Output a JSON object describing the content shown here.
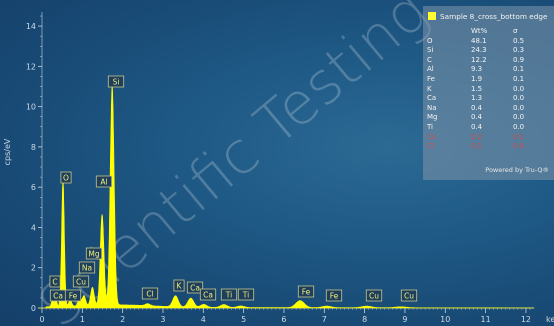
{
  "chart_data": {
    "type": "spectrum",
    "ylabel": "cps/eV",
    "xlabel": "keV",
    "xlim": [
      -0.1,
      12.2
    ],
    "ylim": [
      0,
      14.7
    ],
    "x_ticks": [
      0,
      1,
      2,
      3,
      4,
      5,
      6,
      7,
      8,
      9,
      10,
      11,
      12
    ],
    "y_ticks": [
      0,
      2,
      4,
      6,
      8,
      10,
      12,
      14
    ],
    "series_color": "#ffff00",
    "peaks": [
      {
        "label": "C",
        "energy": 0.28,
        "height": 0.6
      },
      {
        "label": "Ca",
        "energy": 0.34,
        "height": 0.3
      },
      {
        "label": "O",
        "energy": 0.52,
        "height": 6.3
      },
      {
        "label": "Fe",
        "energy": 0.7,
        "height": 0.3
      },
      {
        "label": "Cu",
        "energy": 0.93,
        "height": 0.35
      },
      {
        "label": "Na",
        "energy": 1.04,
        "height": 0.5
      },
      {
        "label": "Mg",
        "energy": 1.25,
        "height": 0.9
      },
      {
        "label": "Al",
        "energy": 1.49,
        "height": 4.5
      },
      {
        "label": "Si",
        "energy": 1.74,
        "height": 10.9
      },
      {
        "label": "Cl",
        "energy": 2.62,
        "height": 0.1
      },
      {
        "label": "K",
        "energy": 3.31,
        "height": 0.55
      },
      {
        "label": "Ca",
        "energy": 3.69,
        "height": 0.45
      },
      {
        "label": "Ca",
        "energy": 4.01,
        "height": 0.15
      },
      {
        "label": "Ti",
        "energy": 4.51,
        "height": 0.15
      },
      {
        "label": "Ti",
        "energy": 4.93,
        "height": 0.08
      },
      {
        "label": "Fe",
        "energy": 6.4,
        "height": 0.35
      },
      {
        "label": "Fe",
        "energy": 7.06,
        "height": 0.08
      },
      {
        "label": "Cu",
        "energy": 8.05,
        "height": 0.08
      },
      {
        "label": "Cu",
        "energy": 8.9,
        "height": 0.05
      }
    ],
    "legend": {
      "title": "Sample 8_cross_bottom edge",
      "columns": [
        "Wt%",
        "σ"
      ],
      "rows": [
        {
          "element": "O",
          "wt": "48.1",
          "sigma": "0.5",
          "flag": false
        },
        {
          "element": "Si",
          "wt": "24.3",
          "sigma": "0.3",
          "flag": false
        },
        {
          "element": "C",
          "wt": "12.2",
          "sigma": "0.9",
          "flag": false
        },
        {
          "element": "Al",
          "wt": "9.3",
          "sigma": "0.1",
          "flag": false
        },
        {
          "element": "Fe",
          "wt": "1.9",
          "sigma": "0.1",
          "flag": false
        },
        {
          "element": "K",
          "wt": "1.5",
          "sigma": "0.0",
          "flag": false
        },
        {
          "element": "Ca",
          "wt": "1.3",
          "sigma": "0.0",
          "flag": false
        },
        {
          "element": "Na",
          "wt": "0.4",
          "sigma": "0.0",
          "flag": false
        },
        {
          "element": "Mg",
          "wt": "0.4",
          "sigma": "0.0",
          "flag": false
        },
        {
          "element": "Ti",
          "wt": "0.4",
          "sigma": "0.0",
          "flag": false
        },
        {
          "element": "Cu",
          "wt": "0.2",
          "sigma": "0.1",
          "flag": true
        },
        {
          "element": "Cl",
          "wt": "0.1",
          "sigma": "0.0",
          "flag": true
        }
      ],
      "footer": "Powered by Tru-Q®"
    }
  },
  "watermark": "Scientific Testing Copy data"
}
